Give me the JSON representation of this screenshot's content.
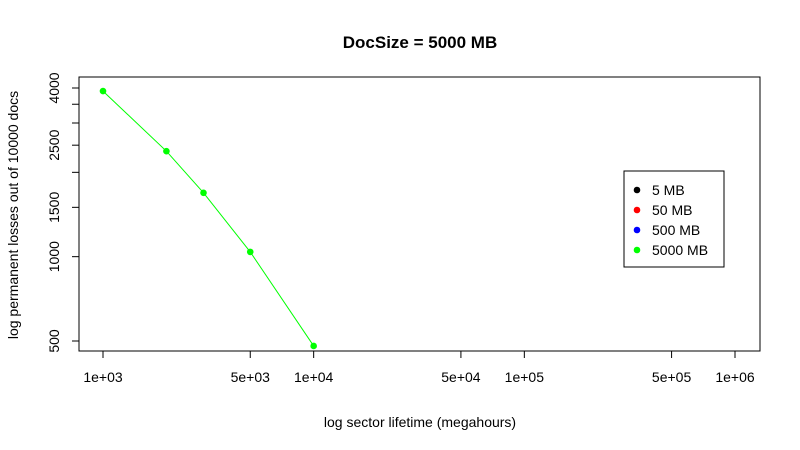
{
  "chart_data": {
    "type": "line",
    "title": "DocSize = 5000 MB",
    "xlabel": "log sector lifetime (megahours)",
    "ylabel": "log permanent losses out of 10000 docs",
    "x_scale": "log",
    "y_scale": "log",
    "xlim": [
      1000,
      1000000
    ],
    "ylim": [
      500,
      4000
    ],
    "x_ticks": [
      {
        "value": 1000,
        "label": "1e+03"
      },
      {
        "value": 5000,
        "label": "5e+03"
      },
      {
        "value": 10000,
        "label": "1e+04"
      },
      {
        "value": 50000,
        "label": "5e+04"
      },
      {
        "value": 100000,
        "label": "1e+05"
      },
      {
        "value": 500000,
        "label": "5e+05"
      },
      {
        "value": 1000000,
        "label": "1e+06"
      }
    ],
    "y_ticks": [
      {
        "value": 500,
        "label": "500"
      },
      {
        "value": 1000,
        "label": "1000"
      },
      {
        "value": 1500,
        "label": "1500"
      },
      {
        "value": 2000,
        "label": ""
      },
      {
        "value": 2500,
        "label": "2500"
      },
      {
        "value": 3000,
        "label": ""
      },
      {
        "value": 3500,
        "label": ""
      },
      {
        "value": 4000,
        "label": "4000"
      }
    ],
    "grid": false,
    "legend_position": "right",
    "legend": [
      {
        "label": "5 MB",
        "color": "#000000"
      },
      {
        "label": "50 MB",
        "color": "#ff0000"
      },
      {
        "label": "500 MB",
        "color": "#0000ff"
      },
      {
        "label": "5000 MB",
        "color": "#00ff00"
      }
    ],
    "series": [
      {
        "color": "#00ff00",
        "points": [
          {
            "x": 1000,
            "y": 3900
          },
          {
            "x": 2000,
            "y": 2380
          },
          {
            "x": 3000,
            "y": 1690
          },
          {
            "x": 5000,
            "y": 1040
          },
          {
            "x": 10000,
            "y": 480
          }
        ]
      }
    ]
  }
}
